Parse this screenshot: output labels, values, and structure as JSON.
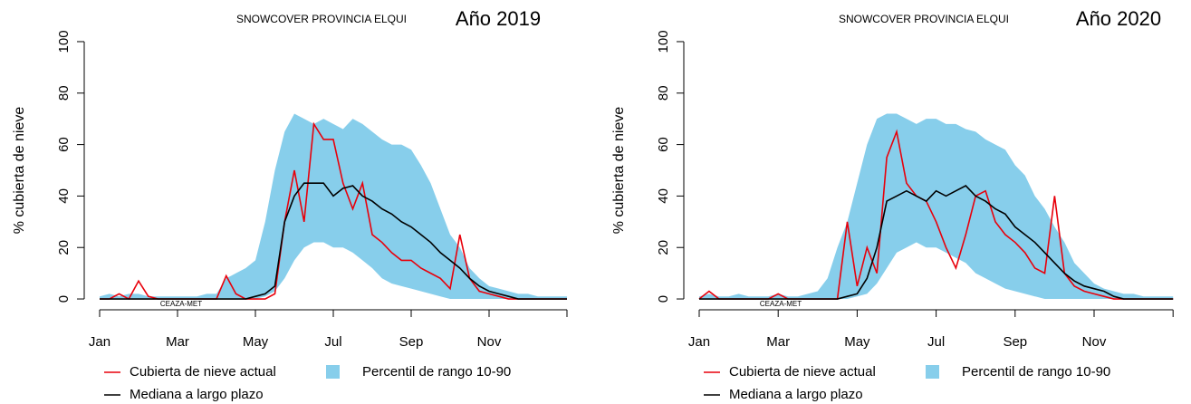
{
  "chart_data": [
    {
      "type": "line",
      "title": "SNOWCOVER PROVINCIA ELQUI",
      "annotation": "Año 2019",
      "watermark": "CEAZA-MET",
      "y_label": "% cubierta de nieve",
      "categories": [
        "Jan",
        null,
        null,
        null,
        null,
        null,
        null,
        null,
        "Mar",
        null,
        null,
        null,
        null,
        null,
        null,
        null,
        "May",
        null,
        null,
        null,
        null,
        null,
        null,
        null,
        "Jul",
        null,
        null,
        null,
        null,
        null,
        null,
        null,
        "Sep",
        null,
        null,
        null,
        null,
        null,
        null,
        null,
        "Nov",
        null,
        null,
        null,
        null,
        null,
        null,
        null,
        null
      ],
      "ylim": [
        -4,
        104
      ],
      "yticks": [
        0,
        20,
        40,
        60,
        80,
        100
      ],
      "legend": "bottom",
      "series": [
        {
          "name": "Percentil de rango 10-90",
          "color": "#87ceeb",
          "type": "area",
          "values": [
            1,
            2,
            1,
            2,
            2,
            1,
            1,
            1,
            1,
            1,
            1,
            2,
            2,
            8,
            10,
            12,
            15,
            30,
            50,
            65,
            72,
            70,
            68,
            70,
            68,
            66,
            70,
            68,
            65,
            62,
            60,
            60,
            58,
            52,
            45,
            35,
            25,
            20,
            12,
            8,
            5,
            4,
            3,
            2,
            2,
            1,
            1,
            1,
            1
          ],
          "lower": [
            0,
            0,
            0,
            0,
            0,
            0,
            0,
            0,
            0,
            0,
            0,
            0,
            0,
            0,
            0,
            0,
            0,
            1,
            3,
            8,
            15,
            20,
            22,
            22,
            20,
            20,
            18,
            15,
            12,
            8,
            6,
            5,
            4,
            3,
            2,
            1,
            0,
            0,
            0,
            0,
            0,
            0,
            0,
            0,
            0,
            0,
            0,
            0,
            0
          ]
        },
        {
          "name": "Cubierta de nieve actual",
          "color": "#e8000b",
          "values": [
            0,
            0,
            2,
            0,
            7,
            1,
            0,
            0,
            0,
            0,
            0,
            0,
            0,
            9,
            2,
            0,
            0,
            0,
            2,
            30,
            50,
            30,
            68,
            62,
            62,
            45,
            35,
            45,
            25,
            22,
            18,
            15,
            15,
            12,
            10,
            8,
            4,
            25,
            8,
            3,
            2,
            1,
            0,
            0,
            0,
            0,
            0,
            0,
            0
          ]
        },
        {
          "name": "Mediana a largo plazo",
          "color": "#000000",
          "values": [
            0,
            0,
            0,
            0,
            0,
            0,
            0,
            0,
            0,
            0,
            0,
            0,
            0,
            0,
            0,
            0,
            1,
            2,
            5,
            30,
            40,
            45,
            45,
            45,
            40,
            43,
            44,
            40,
            38,
            35,
            33,
            30,
            28,
            25,
            22,
            18,
            15,
            12,
            8,
            5,
            3,
            2,
            1,
            0,
            0,
            0,
            0,
            0,
            0
          ]
        }
      ]
    },
    {
      "type": "line",
      "title": "SNOWCOVER PROVINCIA ELQUI",
      "annotation": "Año 2020",
      "watermark": "CEAZA-MET",
      "y_label": "% cubierta de nieve",
      "categories": [
        "Jan",
        null,
        null,
        null,
        null,
        null,
        null,
        null,
        "Mar",
        null,
        null,
        null,
        null,
        null,
        null,
        null,
        "May",
        null,
        null,
        null,
        null,
        null,
        null,
        null,
        "Jul",
        null,
        null,
        null,
        null,
        null,
        null,
        null,
        "Sep",
        null,
        null,
        null,
        null,
        null,
        null,
        null,
        "Nov",
        null,
        null,
        null,
        null,
        null,
        null,
        null,
        null
      ],
      "ylim": [
        -4,
        104
      ],
      "yticks": [
        0,
        20,
        40,
        60,
        80,
        100
      ],
      "legend": "bottom",
      "series": [
        {
          "name": "Percentil de rango 10-90",
          "color": "#87ceeb",
          "type": "area",
          "values": [
            1,
            2,
            1,
            1,
            2,
            1,
            1,
            1,
            2,
            1,
            1,
            2,
            3,
            8,
            20,
            30,
            45,
            60,
            70,
            72,
            72,
            70,
            68,
            70,
            70,
            68,
            68,
            66,
            65,
            62,
            60,
            58,
            52,
            48,
            40,
            35,
            28,
            22,
            14,
            10,
            6,
            4,
            3,
            2,
            2,
            1,
            1,
            1,
            1
          ],
          "lower": [
            0,
            0,
            0,
            0,
            0,
            0,
            0,
            0,
            0,
            0,
            0,
            0,
            0,
            0,
            0,
            0,
            1,
            2,
            6,
            12,
            18,
            20,
            22,
            20,
            20,
            18,
            16,
            14,
            10,
            8,
            6,
            4,
            3,
            2,
            1,
            0,
            0,
            0,
            0,
            0,
            0,
            0,
            0,
            0,
            0,
            0,
            0,
            0,
            0
          ]
        },
        {
          "name": "Cubierta de nieve actual",
          "color": "#e8000b",
          "values": [
            0,
            3,
            0,
            0,
            0,
            0,
            0,
            0,
            2,
            0,
            0,
            0,
            0,
            0,
            0,
            30,
            5,
            20,
            10,
            55,
            65,
            45,
            40,
            38,
            30,
            20,
            12,
            25,
            40,
            42,
            30,
            25,
            22,
            18,
            12,
            10,
            40,
            10,
            5,
            3,
            2,
            1,
            0,
            0,
            0,
            0,
            0,
            0,
            0
          ]
        },
        {
          "name": "Mediana a largo plazo",
          "color": "#000000",
          "values": [
            0,
            0,
            0,
            0,
            0,
            0,
            0,
            0,
            0,
            0,
            0,
            0,
            0,
            0,
            0,
            1,
            2,
            8,
            20,
            38,
            40,
            42,
            40,
            38,
            42,
            40,
            42,
            44,
            40,
            38,
            35,
            33,
            28,
            25,
            22,
            18,
            14,
            10,
            7,
            5,
            4,
            3,
            1,
            0,
            0,
            0,
            0,
            0,
            0
          ]
        }
      ]
    }
  ]
}
